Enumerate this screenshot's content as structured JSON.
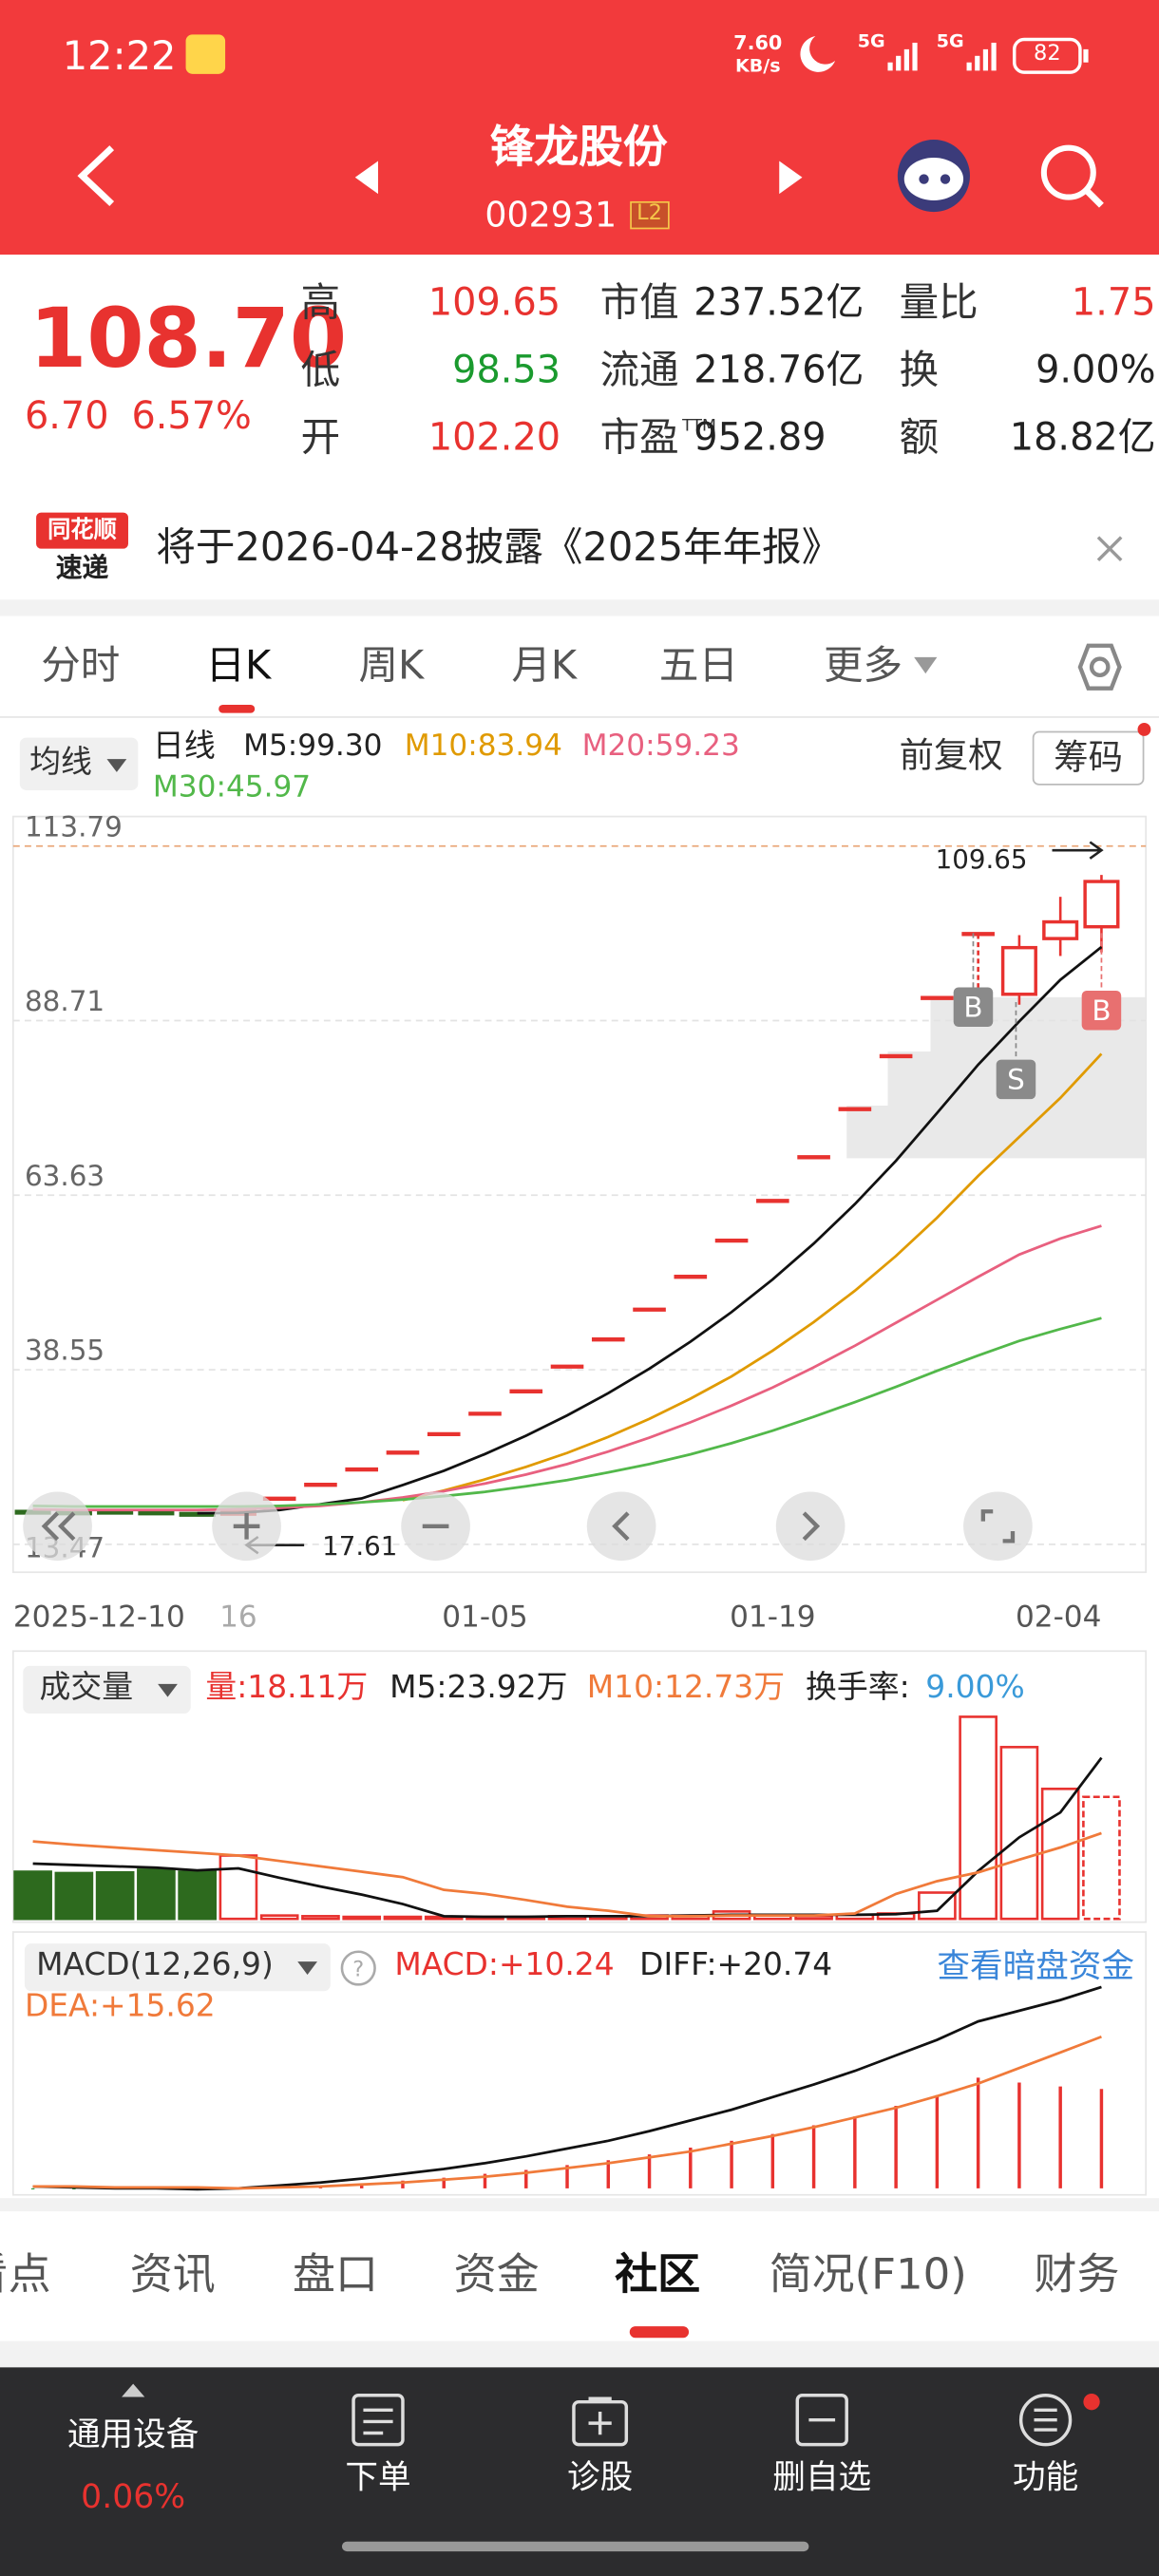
{
  "status_bar": {
    "time": "12:22",
    "net_speed": [
      "7.60",
      "KB/s"
    ],
    "signal": [
      "5G",
      "5G"
    ],
    "battery": "82"
  },
  "header": {
    "name": "锋龙股份",
    "code": "002931",
    "badge": "L2"
  },
  "quote": {
    "price": "108.70",
    "change": "6.70",
    "change_pct": "6.57%",
    "stats": [
      [
        {
          "label": "高",
          "value": "109.65"
        },
        {
          "label": "市值",
          "value": "237.52亿"
        },
        {
          "label": "量比",
          "value": "1.75"
        }
      ],
      [
        {
          "label": "低",
          "value": "98.53"
        },
        {
          "label": "流通",
          "value": "218.76亿"
        },
        {
          "label": "换",
          "value": "9.00%"
        }
      ],
      [
        {
          "label": "开",
          "value": "102.20"
        },
        {
          "label": "市盈",
          "sup": "TTM",
          "value": "952.89"
        },
        {
          "label": "额",
          "value": "18.82亿"
        }
      ]
    ]
  },
  "notice": {
    "logo": [
      "同花顺",
      "速递"
    ],
    "text": "将于2026-04-28披露《2025年年报》"
  },
  "period_tabs": {
    "items": [
      "分时",
      "日K",
      "周K",
      "月K",
      "五日",
      "更多"
    ],
    "active": 1
  },
  "indicators": {
    "ma_button": "均线",
    "period": "日线",
    "ma": [
      {
        "label": "M5:99.30",
        "color": "#222222"
      },
      {
        "label": "M10:83.94",
        "color": "#e09a00"
      },
      {
        "label": "M20:59.23",
        "color": "#e8607f"
      },
      {
        "label": "M30:45.97",
        "color": "#52b84a"
      }
    ],
    "adjust": "前复权",
    "chips": "筹码"
  },
  "kline": {
    "categories": [
      "2025-12-10",
      null,
      null,
      null,
      null,
      "16",
      null,
      null,
      null,
      null,
      null,
      "01-05",
      null,
      null,
      null,
      null,
      null,
      null,
      "01-19",
      null,
      null,
      null,
      null,
      null,
      null,
      null,
      "02-04"
    ],
    "ylim": [
      9.46,
      118.04
    ],
    "yticks": [
      13.47,
      38.55,
      63.63,
      88.71,
      113.79
    ],
    "grid": true,
    "up_color": "#e8322f",
    "down_color": "#2d6a1e",
    "candles": [
      {
        "open": 18.2,
        "close": 18.0,
        "high": 18.4,
        "low": 17.8
      },
      {
        "open": 18.1,
        "close": 17.9,
        "high": 18.2,
        "low": 17.7
      },
      {
        "open": 18.2,
        "close": 18.0,
        "high": 18.3,
        "low": 17.8
      },
      {
        "open": 18.1,
        "close": 17.9,
        "high": 18.2,
        "low": 17.7
      },
      {
        "open": 17.9,
        "close": 17.8,
        "high": 18.0,
        "low": 17.61
      },
      {
        "open": 17.8,
        "close": 18.2,
        "high": 18.5,
        "low": 17.7
      },
      {
        "open": 20.02,
        "close": 20.02,
        "high": 20.02,
        "low": 20.02
      },
      {
        "open": 22.02,
        "close": 22.02,
        "high": 22.02,
        "low": 22.02
      },
      {
        "open": 24.22,
        "close": 24.22,
        "high": 24.22,
        "low": 24.22
      },
      {
        "open": 26.64,
        "close": 26.64,
        "high": 26.64,
        "low": 26.64
      },
      {
        "open": 29.3,
        "close": 29.3,
        "high": 29.3,
        "low": 29.3
      },
      {
        "open": 32.23,
        "close": 32.23,
        "high": 32.23,
        "low": 32.23
      },
      {
        "open": 35.45,
        "close": 35.45,
        "high": 35.45,
        "low": 35.45
      },
      {
        "open": 39.0,
        "close": 39.0,
        "high": 39.0,
        "low": 39.0
      },
      {
        "open": 42.9,
        "close": 42.9,
        "high": 42.9,
        "low": 42.9
      },
      {
        "open": 47.19,
        "close": 47.19,
        "high": 47.19,
        "low": 47.19
      },
      {
        "open": 51.91,
        "close": 51.91,
        "high": 51.91,
        "low": 51.91
      },
      {
        "open": 57.1,
        "close": 57.1,
        "high": 57.1,
        "low": 57.1
      },
      {
        "open": 62.81,
        "close": 62.81,
        "high": 62.81,
        "low": 62.81
      },
      {
        "open": 69.09,
        "close": 69.09,
        "high": 69.09,
        "low": 69.09
      },
      {
        "open": 76.0,
        "close": 76.0,
        "high": 76.0,
        "low": 76.0
      },
      {
        "open": 83.6,
        "close": 83.6,
        "high": 83.6,
        "low": 83.6
      },
      {
        "open": 91.96,
        "close": 91.96,
        "high": 91.96,
        "low": 91.96
      },
      {
        "open": 101.16,
        "close": 101.16,
        "high": 101.16,
        "low": 93.0
      },
      {
        "open": 92.5,
        "close": 99.2,
        "high": 101.0,
        "low": 91.0
      },
      {
        "open": 100.5,
        "close": 102.9,
        "high": 106.5,
        "low": 98.0
      },
      {
        "open": 102.2,
        "close": 108.7,
        "high": 109.65,
        "low": 98.53
      }
    ],
    "ma": [
      {
        "color": "#111111",
        "values": [
          null,
          null,
          null,
          null,
          17.94,
          17.98,
          18.4,
          19.23,
          20.06,
          21.98,
          24.04,
          26.44,
          29.08,
          31.99,
          35.19,
          38.71,
          42.58,
          46.84,
          51.53,
          56.68,
          62.35,
          68.58,
          75.44,
          82.38,
          88.6,
          94.57,
          99.3
        ]
      },
      {
        "color": "#e09a00",
        "values": [
          null,
          null,
          null,
          null,
          null,
          null,
          null,
          null,
          null,
          19.8,
          21.2,
          22.8,
          24.6,
          26.6,
          28.9,
          31.5,
          34.4,
          37.6,
          41.3,
          45.4,
          49.9,
          54.9,
          60.4,
          66.4,
          72.0,
          77.6,
          83.94
        ]
      },
      {
        "color": "#e8607f",
        "values": [
          18.5,
          18.4,
          18.4,
          18.4,
          18.4,
          18.5,
          18.7,
          19.0,
          19.5,
          20.2,
          21.1,
          22.2,
          23.5,
          25.0,
          26.8,
          28.8,
          31.0,
          33.4,
          36.0,
          38.9,
          42.0,
          45.3,
          48.6,
          51.9,
          55.1,
          57.4,
          59.23
        ]
      },
      {
        "color": "#52b84a",
        "values": [
          19.0,
          18.9,
          18.9,
          18.9,
          18.9,
          18.9,
          19.0,
          19.2,
          19.5,
          19.9,
          20.4,
          21.0,
          21.8,
          22.7,
          23.8,
          25.0,
          26.4,
          28.0,
          29.8,
          31.8,
          33.9,
          36.1,
          38.4,
          40.6,
          42.7,
          44.4,
          45.97
        ]
      }
    ],
    "high_label": 109.65,
    "low_label": 17.61,
    "trade_marks": [
      "B",
      "S",
      "B"
    ]
  },
  "volume": {
    "button": "成交量",
    "volume_label": "量:18.11万",
    "ma5_label": "M5:23.92万",
    "ma10_label": "M10:12.73万",
    "turnover_label": "换手率:",
    "turnover": "9.00%",
    "ylim": [
      0,
      30
    ],
    "values": [
      7.0,
      6.8,
      6.9,
      7.3,
      7.0,
      9.4,
      0.5,
      0.4,
      0.3,
      0.3,
      0.3,
      0.3,
      0.3,
      0.4,
      0.4,
      0.5,
      0.5,
      1.1,
      0.5,
      0.4,
      0.6,
      0.8,
      3.9,
      30.0,
      25.5,
      19.3,
      18.11
    ],
    "ma": [
      {
        "color": "#111111",
        "values": [
          8.2,
          8.0,
          7.8,
          7.6,
          7.2,
          7.5,
          6.1,
          4.8,
          3.6,
          2.2,
          0.4,
          0.3,
          0.3,
          0.4,
          0.4,
          0.4,
          0.5,
          0.6,
          0.6,
          0.6,
          0.6,
          0.7,
          1.2,
          7.1,
          12.1,
          15.8,
          23.92
        ]
      },
      {
        "color": "#f07a3a",
        "values": [
          11.5,
          11.0,
          10.6,
          10.2,
          9.8,
          9.4,
          8.6,
          7.8,
          7.0,
          6.2,
          4.3,
          3.7,
          2.8,
          1.8,
          1.2,
          0.4,
          0.4,
          0.5,
          0.5,
          0.5,
          0.8,
          3.7,
          5.6,
          6.9,
          8.8,
          10.6,
          12.73
        ]
      }
    ]
  },
  "macd": {
    "button": "MACD(12,26,9)",
    "macd_label": "MACD:+10.24",
    "diff_label": "DIFF:+20.74",
    "dea_label": "DEA:+15.62",
    "link": "查看暗盘资金",
    "ylim": [
      -0.5,
      21.5
    ],
    "histogram": [
      -0.1,
      -0.1,
      -0.1,
      -0.1,
      -0.1,
      0.0,
      0.1,
      0.3,
      0.5,
      0.8,
      1.1,
      1.5,
      1.9,
      2.4,
      2.9,
      3.5,
      4.2,
      4.9,
      5.6,
      6.5,
      7.4,
      8.5,
      9.6,
      11.4,
      10.9,
      10.5,
      10.24
    ],
    "diff": {
      "color": "#111111",
      "values": [
        0.2,
        0.1,
        0.0,
        0.0,
        -0.1,
        0.0,
        0.3,
        0.6,
        1.0,
        1.5,
        2.0,
        2.6,
        3.3,
        4.1,
        4.9,
        5.9,
        7.0,
        8.1,
        9.4,
        10.7,
        12.1,
        13.7,
        15.3,
        17.2,
        18.3,
        19.4,
        20.74
      ]
    },
    "dea": {
      "color": "#f07a3a",
      "values": [
        0.2,
        0.2,
        0.1,
        0.1,
        0.1,
        0.0,
        0.1,
        0.2,
        0.4,
        0.6,
        0.9,
        1.2,
        1.6,
        2.1,
        2.6,
        3.2,
        3.8,
        4.6,
        5.4,
        6.3,
        7.3,
        8.3,
        9.5,
        10.8,
        12.4,
        14.0,
        15.62
      ]
    }
  },
  "bottom_tabs": {
    "items": [
      "看点",
      "资讯",
      "盘口",
      "资金",
      "社区",
      "简况(F10)",
      "财务"
    ],
    "active": 4
  },
  "toolbar": {
    "sector": "通用设备",
    "sector_change": "0.06%",
    "buttons": [
      "下单",
      "诊股",
      "删自选",
      "功能"
    ]
  }
}
